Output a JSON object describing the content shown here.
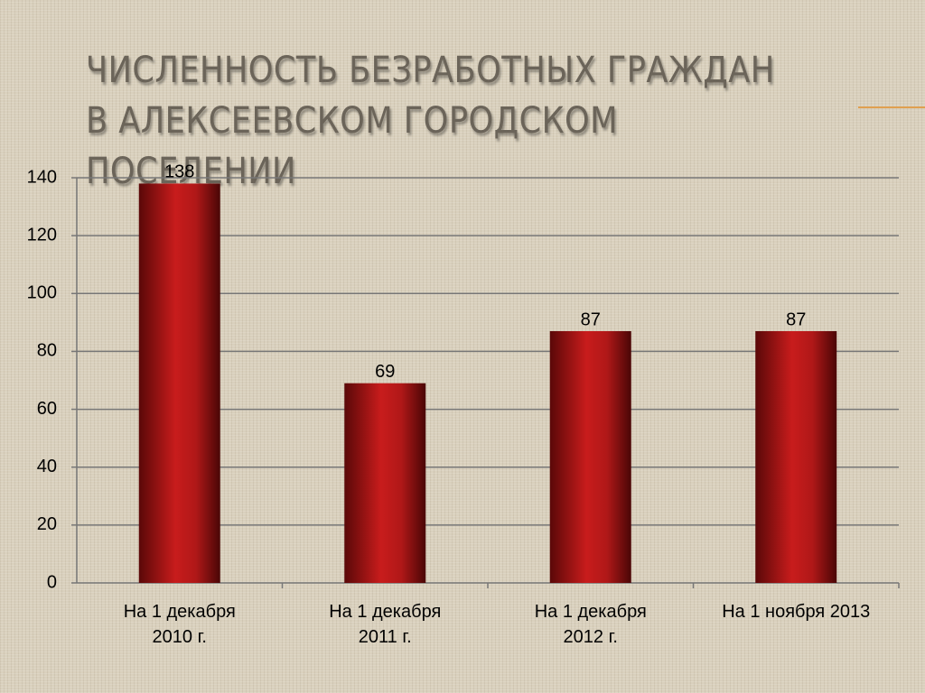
{
  "chart_data": {
    "type": "bar",
    "title": "ЧИСЛЕННОСТЬ БЕЗРАБОТНЫХ ГРАЖДАН В АЛЕКСЕЕВСКОМ ГОРОДСКОМ ПОСЕЛЕНИИ",
    "categories": [
      "На 1 декабря 2010 г.",
      "На 1 декабря 2011 г.",
      "На 1 декабря 2012 г.",
      "На 1 ноября 2013"
    ],
    "values": [
      138,
      69,
      87,
      87
    ],
    "color": "#b01818",
    "ylim": [
      0,
      140
    ],
    "yticks": [
      0,
      20,
      40,
      60,
      80,
      100,
      120,
      140
    ],
    "grid": true
  }
}
